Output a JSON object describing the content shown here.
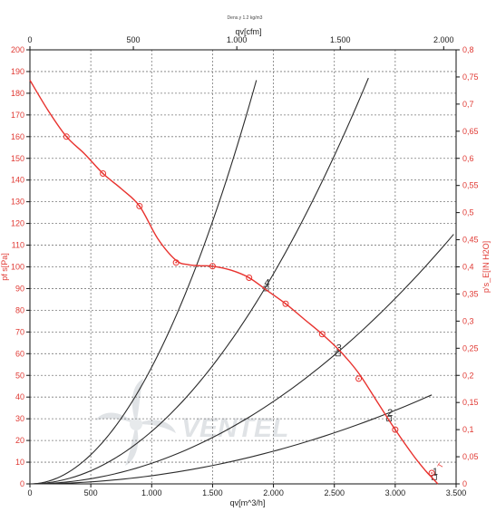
{
  "colors": {
    "fan_curve": "#e8322e",
    "system_curves": "#2b2b2b",
    "grid": "#7a7a7a",
    "axis": "#111111",
    "right_axis_text": "#e03a34",
    "watermark": "#c7cdd3"
  },
  "chart_data": {
    "type": "line",
    "title": "Dens.y 1.2 kg/m3",
    "watermark": "VENTEL",
    "grid": true,
    "axes": {
      "x_bottom": {
        "label": "qv[m^3/h]",
        "range": [
          0,
          3500
        ],
        "ticks": [
          0,
          500,
          1000,
          1500,
          2000,
          2500,
          3000,
          3500
        ],
        "tick_labels": [
          "0",
          "500",
          "1.000",
          "1.500",
          "2.000",
          "2.500",
          "3.000",
          "3.500"
        ]
      },
      "x_top": {
        "label": "qv[cfm]",
        "range": [
          0,
          2060
        ],
        "ticks": [
          0,
          500,
          1000,
          1500,
          2000
        ],
        "tick_labels": [
          "0",
          "500",
          "1.000",
          "1.500",
          "2.000"
        ]
      },
      "y_left": {
        "label": "pf s[Pa]",
        "range": [
          0,
          200
        ],
        "ticks": [
          0,
          10,
          20,
          30,
          40,
          50,
          60,
          70,
          80,
          90,
          100,
          110,
          120,
          130,
          140,
          150,
          160,
          170,
          180,
          190,
          200
        ],
        "tick_labels": [
          "0",
          "10",
          "20",
          "30",
          "40",
          "50",
          "60",
          "70",
          "80",
          "90",
          "100",
          "110",
          "120",
          "130",
          "140",
          "150",
          "160",
          "170",
          "180",
          "190",
          "200"
        ]
      },
      "y_right": {
        "label": "p's_E[IN H2O]",
        "range": [
          0,
          0.8
        ],
        "ticks": [
          0,
          0.05,
          0.1,
          0.15,
          0.2,
          0.25,
          0.3,
          0.35,
          0.4,
          0.45,
          0.5,
          0.55,
          0.6,
          0.65,
          0.7,
          0.75,
          0.8
        ],
        "tick_labels": [
          "0",
          "0,05",
          "0,1",
          "0,15",
          "0,2",
          "0,25",
          "0,3",
          "0,35",
          "0,4",
          "0,45",
          "0,5",
          "0,55",
          "0,6",
          "0,65",
          "0,7",
          "0,75",
          "0,8"
        ]
      }
    },
    "fan_curve": {
      "x": [
        0,
        150,
        300,
        450,
        600,
        750,
        900,
        1050,
        1200,
        1300,
        1400,
        1500,
        1650,
        1800,
        1950,
        2100,
        2250,
        2400,
        2550,
        2700,
        2850,
        3000,
        3150,
        3250,
        3300,
        3350
      ],
      "y": [
        186,
        172,
        160,
        152,
        143,
        136,
        128,
        113,
        103,
        101,
        100.5,
        100.3,
        98.5,
        95,
        89,
        83,
        76,
        69,
        61,
        51,
        38,
        25,
        13,
        6,
        3,
        0
      ],
      "markers": {
        "x": [
          300,
          600,
          900,
          1200,
          1500,
          1800,
          2100,
          2400,
          2700,
          3000,
          3300
        ],
        "y": [
          160,
          143,
          128,
          102,
          100.3,
          95,
          83,
          69,
          48.5,
          25,
          5
        ]
      }
    },
    "system_curves": [
      {
        "label": "1",
        "x_end": 1860,
        "y_end": 186,
        "point": {
          "x": 3320,
          "y": 3
        }
      },
      {
        "label": "2",
        "x_end": 3300,
        "y_end": 41,
        "point": {
          "x": 2950,
          "y": 30
        }
      },
      {
        "label": "3",
        "x_end": 3480,
        "y_end": 115,
        "point": {
          "x": 2530,
          "y": 60
        }
      },
      {
        "label": "4",
        "x_end": 2780,
        "y_end": 187,
        "point": {
          "x": 1940,
          "y": 90
        }
      }
    ],
    "system_curve_label": "T",
    "fan_point_labels": [
      "1",
      "2",
      "3",
      "4"
    ]
  }
}
